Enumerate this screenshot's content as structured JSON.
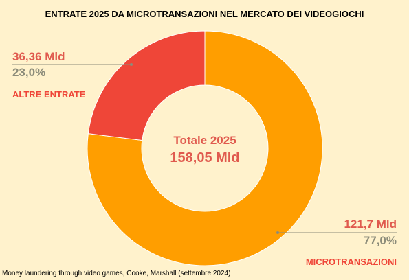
{
  "colors": {
    "background": "#fff2cc",
    "microtransazioni": "#ff9e00",
    "altre_entrate": "#ef4638",
    "label_value": "#e05a4e",
    "label_pct": "#8c8c7a",
    "leader_line": "#8c8c7a"
  },
  "chart_data": {
    "type": "pie",
    "variant": "donut",
    "title": "ENTRATE 2025 DA MICROTRANSAZIONI NEL MERCATO DEI VIDEOGIOCHI",
    "center_label": "Totale 2025",
    "center_value": "158,05 Mld",
    "slices": [
      {
        "category": "MICROTRANSAZIONI",
        "value": 121.7,
        "value_label": "121,7 Mld",
        "percent": 77.0,
        "percent_label": "77,0%"
      },
      {
        "category": "ALTRE ENTRATE",
        "value": 36.36,
        "value_label": "36,36 Mld",
        "percent": 23.0,
        "percent_label": "23,0%"
      }
    ],
    "source": "Money laundering through video games, Cooke, Marshall (settembre 2024)"
  }
}
